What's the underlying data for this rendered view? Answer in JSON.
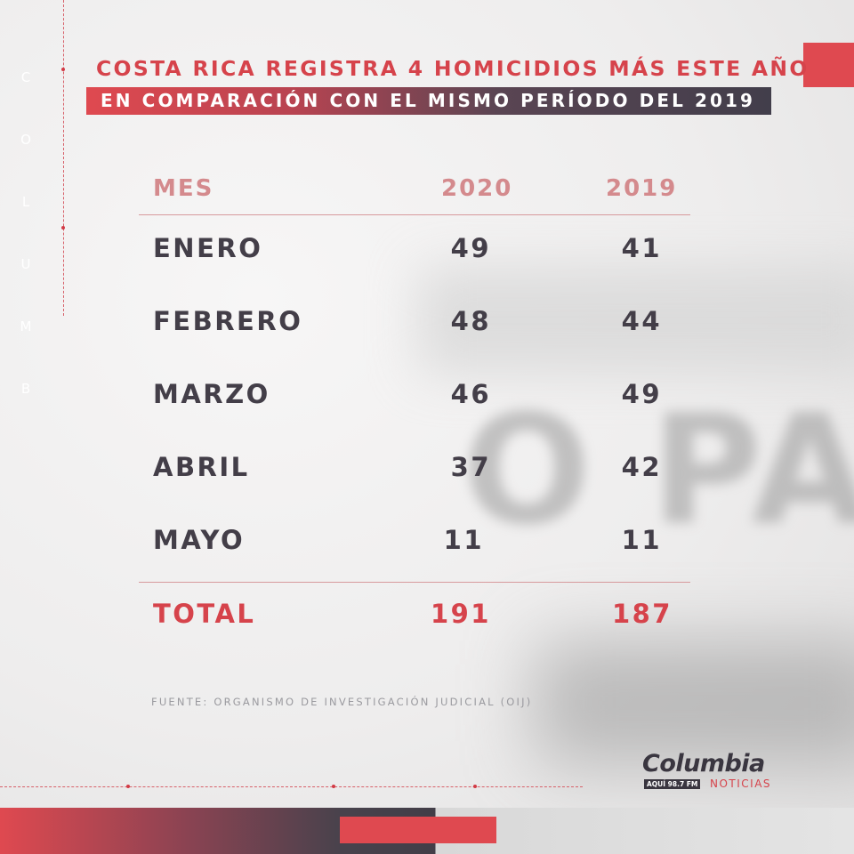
{
  "side_letters": [
    "C",
    "O",
    "L",
    "U",
    "M",
    "B"
  ],
  "headline": {
    "line1": "COSTA RICA REGISTRA 4 HOMICIDIOS MÁS ESTE AÑO",
    "line2": "EN COMPARACIÓN CON EL MISMO PERÍODO DEL 2019"
  },
  "table": {
    "headers": [
      "MES",
      "2020",
      "2019"
    ],
    "rows": [
      {
        "mes": "ENERO",
        "v2020": "49",
        "v2019": "41"
      },
      {
        "mes": "FEBRERO",
        "v2020": "48",
        "v2019": "44"
      },
      {
        "mes": "MARZO",
        "v2020": "46",
        "v2019": "49"
      },
      {
        "mes": "ABRIL",
        "v2020": "37",
        "v2019": "42"
      },
      {
        "mes": "MAYO",
        "v2020": "11",
        "v2019": "11"
      }
    ],
    "total": {
      "label": "TOTAL",
      "v2020": "191",
      "v2019": "187"
    }
  },
  "source": "FUENTE: ORGANISMO DE INVESTIGACIÓN JUDICIAL (OIJ)",
  "logo": {
    "wordmark": "Columbia",
    "tagline": "AQUÍ 98.7 FM",
    "sub": "NOTICIAS"
  },
  "background_text": "O PAS",
  "colors": {
    "accent_red": "#df4950",
    "dark": "#433e48",
    "header_pink": "#d48a8d"
  }
}
